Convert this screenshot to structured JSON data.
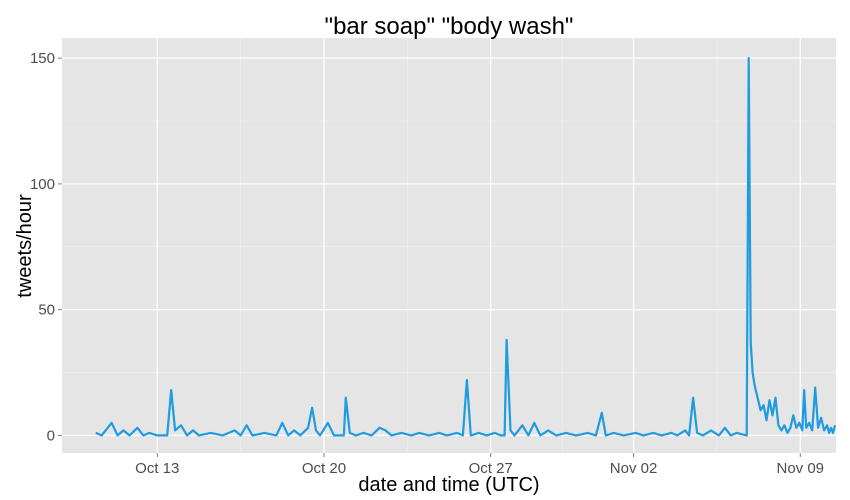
{
  "chart_data": {
    "type": "line",
    "title": "\"bar soap\" \"body wash\"",
    "xlabel": "date and time (UTC)",
    "ylabel": "tweets/hour",
    "x_ticks": [
      "Oct 13",
      "Oct 20",
      "Oct 27",
      "Nov 02",
      "Nov 09"
    ],
    "y_ticks": [
      "0",
      "50",
      "100",
      "150"
    ],
    "ylim": [
      -7,
      158
    ],
    "xlim": [
      "2014-10-09T00:00",
      "2014-11-10T12:00"
    ],
    "grid": true,
    "series": [
      {
        "color": "#1f9be0",
        "points": [
          [
            "2014-10-10T10:00",
            1
          ],
          [
            "2014-10-10T16:00",
            0
          ],
          [
            "2014-10-11T02:00",
            5
          ],
          [
            "2014-10-11T08:00",
            0
          ],
          [
            "2014-10-11T14:00",
            2
          ],
          [
            "2014-10-11T20:00",
            0
          ],
          [
            "2014-10-12T04:00",
            3
          ],
          [
            "2014-10-12T10:00",
            0
          ],
          [
            "2014-10-12T16:00",
            1
          ],
          [
            "2014-10-13T00:00",
            0
          ],
          [
            "2014-10-13T10:00",
            0
          ],
          [
            "2014-10-13T14:00",
            18
          ],
          [
            "2014-10-13T18:00",
            2
          ],
          [
            "2014-10-14T00:00",
            4
          ],
          [
            "2014-10-14T06:00",
            0
          ],
          [
            "2014-10-14T12:00",
            2
          ],
          [
            "2014-10-14T18:00",
            0
          ],
          [
            "2014-10-15T06:00",
            1
          ],
          [
            "2014-10-15T18:00",
            0
          ],
          [
            "2014-10-16T06:00",
            2
          ],
          [
            "2014-10-16T12:00",
            0
          ],
          [
            "2014-10-16T18:00",
            4
          ],
          [
            "2014-10-17T00:00",
            0
          ],
          [
            "2014-10-17T12:00",
            1
          ],
          [
            "2014-10-18T00:00",
            0
          ],
          [
            "2014-10-18T06:00",
            5
          ],
          [
            "2014-10-18T12:00",
            0
          ],
          [
            "2014-10-18T18:00",
            2
          ],
          [
            "2014-10-19T00:00",
            0
          ],
          [
            "2014-10-19T08:00",
            3
          ],
          [
            "2014-10-19T12:00",
            11
          ],
          [
            "2014-10-19T16:00",
            2
          ],
          [
            "2014-10-19T20:00",
            0
          ],
          [
            "2014-10-20T04:00",
            5
          ],
          [
            "2014-10-20T10:00",
            0
          ],
          [
            "2014-10-20T20:00",
            0
          ],
          [
            "2014-10-20T22:00",
            15
          ],
          [
            "2014-10-21T02:00",
            1
          ],
          [
            "2014-10-21T08:00",
            0
          ],
          [
            "2014-10-21T16:00",
            1
          ],
          [
            "2014-10-22T00:00",
            0
          ],
          [
            "2014-10-22T08:00",
            3
          ],
          [
            "2014-10-22T14:00",
            2
          ],
          [
            "2014-10-22T20:00",
            0
          ],
          [
            "2014-10-23T06:00",
            1
          ],
          [
            "2014-10-23T16:00",
            0
          ],
          [
            "2014-10-24T00:00",
            1
          ],
          [
            "2014-10-24T10:00",
            0
          ],
          [
            "2014-10-24T20:00",
            1
          ],
          [
            "2014-10-25T04:00",
            0
          ],
          [
            "2014-10-25T14:00",
            1
          ],
          [
            "2014-10-25T20:00",
            0
          ],
          [
            "2014-10-26T00:00",
            22
          ],
          [
            "2014-10-26T04:00",
            0
          ],
          [
            "2014-10-26T12:00",
            1
          ],
          [
            "2014-10-26T20:00",
            0
          ],
          [
            "2014-10-27T04:00",
            1
          ],
          [
            "2014-10-27T10:00",
            0
          ],
          [
            "2014-10-27T14:00",
            0
          ],
          [
            "2014-10-27T16:00",
            38
          ],
          [
            "2014-10-27T20:00",
            2
          ],
          [
            "2014-10-28T00:00",
            0
          ],
          [
            "2014-10-28T08:00",
            4
          ],
          [
            "2014-10-28T14:00",
            0
          ],
          [
            "2014-10-28T20:00",
            5
          ],
          [
            "2014-10-29T02:00",
            0
          ],
          [
            "2014-10-29T10:00",
            2
          ],
          [
            "2014-10-29T18:00",
            0
          ],
          [
            "2014-10-30T04:00",
            1
          ],
          [
            "2014-10-30T14:00",
            0
          ],
          [
            "2014-10-31T02:00",
            1
          ],
          [
            "2014-10-31T10:00",
            0
          ],
          [
            "2014-10-31T16:00",
            9
          ],
          [
            "2014-10-31T20:00",
            0
          ],
          [
            "2014-11-01T04:00",
            1
          ],
          [
            "2014-11-01T14:00",
            0
          ],
          [
            "2014-11-02T02:00",
            1
          ],
          [
            "2014-11-02T10:00",
            0
          ],
          [
            "2014-11-02T20:00",
            1
          ],
          [
            "2014-11-03T04:00",
            0
          ],
          [
            "2014-11-03T14:00",
            1
          ],
          [
            "2014-11-03T20:00",
            0
          ],
          [
            "2014-11-04T04:00",
            2
          ],
          [
            "2014-11-04T08:00",
            0
          ],
          [
            "2014-11-04T12:00",
            15
          ],
          [
            "2014-11-04T16:00",
            1
          ],
          [
            "2014-11-04T22:00",
            0
          ],
          [
            "2014-11-05T06:00",
            2
          ],
          [
            "2014-11-05T14:00",
            0
          ],
          [
            "2014-11-05T20:00",
            3
          ],
          [
            "2014-11-06T02:00",
            0
          ],
          [
            "2014-11-06T08:00",
            1
          ],
          [
            "2014-11-06T18:00",
            0
          ],
          [
            "2014-11-06T20:00",
            150
          ],
          [
            "2014-11-06T22:00",
            37
          ],
          [
            "2014-11-07T00:00",
            25
          ],
          [
            "2014-11-07T02:00",
            20
          ],
          [
            "2014-11-07T05:00",
            15
          ],
          [
            "2014-11-07T08:00",
            10
          ],
          [
            "2014-11-07T11:00",
            12
          ],
          [
            "2014-11-07T14:00",
            6
          ],
          [
            "2014-11-07T17:00",
            14
          ],
          [
            "2014-11-07T20:00",
            8
          ],
          [
            "2014-11-07T23:00",
            15
          ],
          [
            "2014-11-08T02:00",
            4
          ],
          [
            "2014-11-08T05:00",
            2
          ],
          [
            "2014-11-08T08:00",
            4
          ],
          [
            "2014-11-08T11:00",
            1
          ],
          [
            "2014-11-08T14:00",
            3
          ],
          [
            "2014-11-08T17:00",
            8
          ],
          [
            "2014-11-08T20:00",
            3
          ],
          [
            "2014-11-08T23:00",
            5
          ],
          [
            "2014-11-09T02:00",
            2
          ],
          [
            "2014-11-09T04:00",
            18
          ],
          [
            "2014-11-09T06:00",
            3
          ],
          [
            "2014-11-09T09:00",
            5
          ],
          [
            "2014-11-09T12:00",
            2
          ],
          [
            "2014-11-09T15:00",
            19
          ],
          [
            "2014-11-09T18:00",
            3
          ],
          [
            "2014-11-09T21:00",
            7
          ],
          [
            "2014-11-10T00:00",
            2
          ],
          [
            "2014-11-10T03:00",
            4
          ],
          [
            "2014-11-10T05:00",
            1
          ],
          [
            "2014-11-10T07:00",
            3
          ],
          [
            "2014-11-10T09:00",
            1
          ],
          [
            "2014-11-10T11:00",
            4
          ]
        ]
      }
    ]
  }
}
